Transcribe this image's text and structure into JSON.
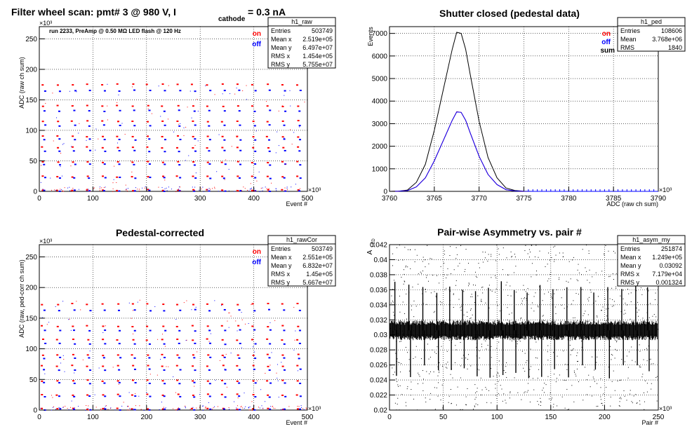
{
  "panels": [
    {
      "id": "p1",
      "title": "Filter wheel scan: pmt#   3 @   980 V, I",
      "title_sub": "cathode",
      "title_tail": "= 0.3 nA",
      "annotation": "run 2233, PreAmp @ 0.50 MΩ    LED flash @  120 Hz",
      "ylabel": "ADC (raw ch sum)",
      "xlabel": "Event #",
      "x_exp": "×10³",
      "y_exp": "×10³",
      "xticks": [
        "0",
        "100",
        "200",
        "300",
        "400",
        "500"
      ],
      "yticks": [
        "0",
        "50",
        "100",
        "150",
        "200",
        "250"
      ],
      "legend": [
        {
          "label": "on",
          "color": "#ff0000"
        },
        {
          "label": "off",
          "color": "#0000ff"
        }
      ],
      "stats": {
        "name": "h1_raw",
        "rows": [
          [
            "Entries",
            "503749"
          ],
          [
            "Mean x",
            "2.519e+05"
          ],
          [
            "Mean y",
            "6.497e+07"
          ],
          [
            "RMS x",
            "1.454e+05"
          ],
          [
            "RMS y",
            "5.755e+07"
          ]
        ]
      }
    },
    {
      "id": "p2",
      "title": "Shutter closed (pedestal data)",
      "ylabel": "Events",
      "xlabel": "ADC (raw ch sum)",
      "x_exp": "×10³",
      "xticks": [
        "3760",
        "3765",
        "3770",
        "3775",
        "3780",
        "3785",
        "3790"
      ],
      "yticks": [
        "0",
        "1000",
        "2000",
        "3000",
        "4000",
        "5000",
        "6000",
        "7000"
      ],
      "legend": [
        {
          "label": "on",
          "color": "#ff0000"
        },
        {
          "label": "off",
          "color": "#0000ff"
        },
        {
          "label": "sum",
          "color": "#000000"
        }
      ],
      "stats": {
        "name": "h1_ped",
        "rows": [
          [
            "Entries",
            "108606"
          ],
          [
            "Mean",
            "3.768e+06"
          ],
          [
            "RMS",
            "1840"
          ]
        ]
      }
    },
    {
      "id": "p3",
      "title": "Pedestal-corrected",
      "ylabel": "ADC (raw, ped-corr ch sum)",
      "xlabel": "Event #",
      "x_exp": "×10³",
      "y_exp": "×10³",
      "xticks": [
        "0",
        "100",
        "200",
        "300",
        "400",
        "500"
      ],
      "yticks": [
        "0",
        "50",
        "100",
        "150",
        "200",
        "250"
      ],
      "legend": [
        {
          "label": "on",
          "color": "#ff0000"
        },
        {
          "label": "off",
          "color": "#0000ff"
        }
      ],
      "stats": {
        "name": "h1_rawCor",
        "rows": [
          [
            "Entries",
            "503749"
          ],
          [
            "Mean x",
            "2.551e+05"
          ],
          [
            "Mean y",
            "6.832e+07"
          ],
          [
            "RMS x",
            "1.45e+05"
          ],
          [
            "RMS y",
            "5.667e+07"
          ]
        ]
      }
    },
    {
      "id": "p4",
      "title": "Pair-wise Asymmetry vs. pair #",
      "ylabel": "A",
      "ylabel_sub": "LED",
      "xlabel": "Pair #",
      "x_exp": "×10³",
      "xticks": [
        "0",
        "50",
        "100",
        "150",
        "200",
        "250"
      ],
      "yticks": [
        "0.02",
        "0.022",
        "0.024",
        "0.026",
        "0.028",
        "0.03",
        "0.032",
        "0.034",
        "0.036",
        "0.038",
        "0.04",
        "0.042"
      ],
      "stats": {
        "name": "h1_asym_my",
        "rows": [
          [
            "Entries",
            "251874"
          ],
          [
            "Mean x",
            "1.249e+05"
          ],
          [
            "Mean y",
            "0.03092"
          ],
          [
            "RMS x",
            "7.179e+04"
          ],
          [
            "RMS y",
            "0.001324"
          ]
        ]
      }
    }
  ],
  "chart_data": [
    {
      "type": "scatter",
      "title": "Filter wheel scan: pmt#   3 @   980 V, I cathode = 0.3 nA",
      "xlabel": "Event #",
      "ylabel": "ADC (raw ch sum)",
      "xlim": [
        0,
        500
      ],
      "ylim": [
        0,
        270
      ],
      "x_scale": 1000,
      "y_scale": 1000000,
      "grid": true,
      "series": [
        {
          "name": "on",
          "color": "#ff0000"
        },
        {
          "name": "off",
          "color": "#0000ff"
        }
      ],
      "levels_on": [
        2,
        24,
        48,
        72,
        90,
        115,
        140,
        175
      ],
      "levels_off": [
        1,
        22,
        44,
        66,
        85,
        108,
        132,
        165
      ],
      "step_events_thousand": 28
    },
    {
      "type": "line",
      "title": "Shutter closed (pedestal data)",
      "xlabel": "ADC (raw ch sum)",
      "ylabel": "Events",
      "xlim": [
        3760,
        3790
      ],
      "ylim": [
        0,
        7300
      ],
      "x_scale": 1000,
      "grid": true,
      "x": [
        3760,
        3761,
        3762,
        3763,
        3764,
        3765,
        3766,
        3767,
        3767.5,
        3768,
        3768.5,
        3769,
        3770,
        3771,
        3772,
        3773,
        3774,
        3775,
        3776,
        3790
      ],
      "series": [
        {
          "name": "sum",
          "color": "#000000",
          "values": [
            0,
            10,
            60,
            400,
            1200,
            2700,
            4500,
            6300,
            7050,
            7000,
            6300,
            5200,
            3100,
            1500,
            600,
            150,
            40,
            5,
            0,
            0
          ]
        },
        {
          "name": "on",
          "color": "#ff0000",
          "values": [
            0,
            5,
            30,
            200,
            600,
            1350,
            2250,
            3150,
            3530,
            3500,
            3150,
            2600,
            1550,
            750,
            300,
            75,
            20,
            2,
            0,
            0
          ]
        },
        {
          "name": "off",
          "color": "#0000ff",
          "values": [
            0,
            5,
            30,
            200,
            600,
            1350,
            2250,
            3150,
            3520,
            3500,
            3150,
            2600,
            1550,
            750,
            300,
            75,
            20,
            3,
            0,
            0
          ]
        }
      ]
    },
    {
      "type": "scatter",
      "title": "Pedestal-corrected",
      "xlabel": "Event #",
      "ylabel": "ADC (raw, ped-corr ch sum)",
      "xlim": [
        0,
        500
      ],
      "ylim": [
        0,
        270
      ],
      "x_scale": 1000,
      "y_scale": 1000000,
      "grid": true,
      "series": [
        {
          "name": "on",
          "color": "#ff0000"
        },
        {
          "name": "off",
          "color": "#0000ff"
        }
      ],
      "levels_on": [
        2,
        25,
        48,
        72,
        90,
        115,
        137,
        173
      ],
      "levels_off": [
        1,
        22,
        44,
        66,
        85,
        108,
        130,
        163
      ],
      "step_events_thousand": 28
    },
    {
      "type": "scatter",
      "title": "Pair-wise Asymmetry vs. pair #",
      "xlabel": "Pair #",
      "ylabel": "A LED",
      "xlim": [
        0,
        250
      ],
      "ylim": [
        0.02,
        0.042
      ],
      "x_scale": 1000,
      "grid": true,
      "band_center": 0.0306,
      "band_halfwidth": 0.0012,
      "spike_pairs_thousand": [
        5,
        18,
        31,
        44,
        56,
        68,
        80,
        92,
        104,
        116,
        128,
        140,
        152,
        165,
        178,
        190,
        203,
        216,
        229,
        240
      ],
      "spike_top": 0.0375,
      "spike_bottom": 0.024,
      "series": [
        {
          "name": "h1_asym_my",
          "color": "#000000"
        }
      ]
    }
  ]
}
